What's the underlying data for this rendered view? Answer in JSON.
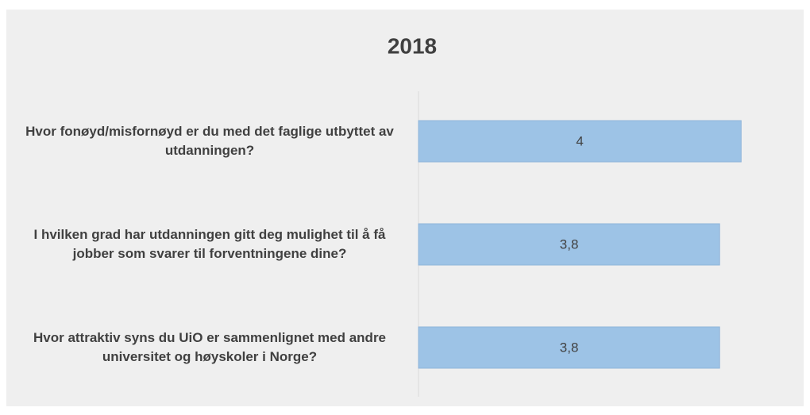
{
  "chart_data": {
    "type": "barh",
    "title": "2018",
    "categories": [
      "Hvor fonøyd/misfornøyd er du med det faglige utbyttet av utdanningen?",
      "I hvilken grad har utdanningen gitt deg mulighet til å få jobber som svarer til forventningene dine?",
      "Hvor attraktiv syns du UiO er sammenlignet med andre universitet og høyskoler i Norge?"
    ],
    "values": [
      4,
      3.8,
      3.8
    ],
    "value_labels": [
      "4",
      "3,8",
      "3,8"
    ],
    "color": "#9dc3e6",
    "xlim": [
      1,
      4.5
    ]
  }
}
